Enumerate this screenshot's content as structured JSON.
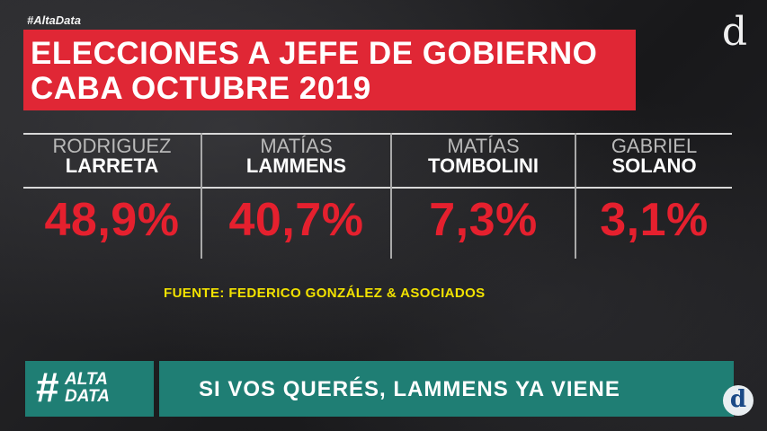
{
  "header": {
    "hashtag": "#AltaData",
    "title_line1": "ELECCIONES A JEFE DE GOBIERNO",
    "title_line2": "CABA OCTUBRE 2019"
  },
  "brand_logo": "d",
  "candidates": [
    {
      "first": "RODRIGUEZ",
      "last": "LARRETA",
      "pct": "48,9%"
    },
    {
      "first": "MATÍAS",
      "last": "LAMMENS",
      "pct": "40,7%"
    },
    {
      "first": "MATÍAS",
      "last": "TOMBOLINI",
      "pct": "7,3%"
    },
    {
      "first": "GABRIEL",
      "last": "SOLANO",
      "pct": "3,1%"
    }
  ],
  "source": "FUENTE: FEDERICO GONZÁLEZ & ASOCIADOS",
  "badge": {
    "hash": "#",
    "word1": "ALTA",
    "word2": "DATA"
  },
  "tagline": "SI VOS QUERÉS, LAMMENS YA VIENE",
  "corner_logo": "d",
  "colors": {
    "accent_red": "#e02735",
    "teal": "#1f7e74",
    "source_yellow": "#f2e200"
  }
}
